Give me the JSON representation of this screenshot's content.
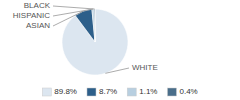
{
  "chart_data": {
    "type": "pie",
    "categories": [
      "WHITE",
      "ASIAN",
      "HISPANIC",
      "BLACK"
    ],
    "values": [
      89.8,
      8.7,
      1.1,
      0.4
    ],
    "value_labels": [
      "89.8%",
      "8.7%",
      "1.1%",
      "0.4%"
    ],
    "colors": [
      "#dce6f0",
      "#2d5f8a",
      "#b8cfe0",
      "#4a6e8a"
    ],
    "legend": "bottom"
  }
}
